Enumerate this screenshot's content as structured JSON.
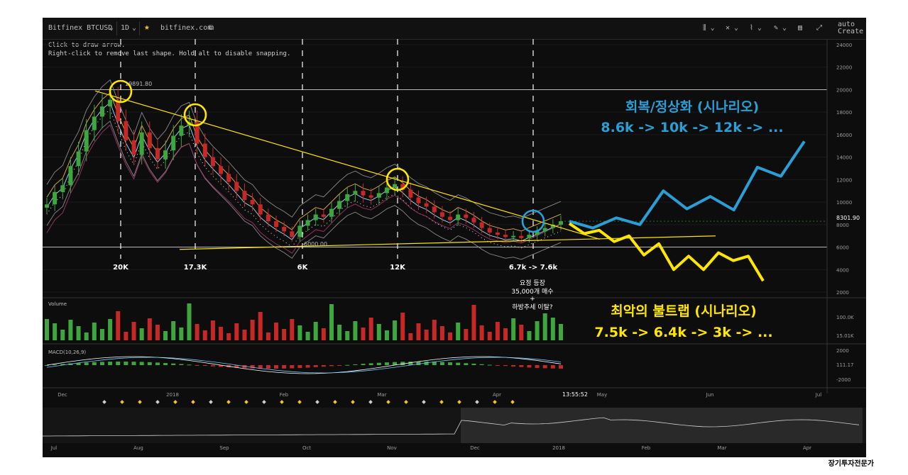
{
  "toolbar": {
    "symbol": "Bitfinex BTCUSD",
    "interval": "1D",
    "source": "bitfinex.com",
    "create_alert": "Create A",
    "auto": "auto",
    "star_icon": "star-icon"
  },
  "hints": {
    "line1": "Click to draw arrow.",
    "line2": "Right-click to remove last shape. Hold alt to disable snapping."
  },
  "colors": {
    "background": "#0d0d0d",
    "up": "#3fa63f",
    "down": "#c62828",
    "trend": "#ffe600",
    "recovery": "#2a9fd6",
    "crash": "#ffe600"
  },
  "annotations": {
    "recovery_title": "회복/정상화 (시나리오)",
    "recovery_path": "8.6k -> 10k -> 12k -> ...",
    "crash_title": "최악의 불트랩 (시나리오)",
    "crash_path": "7.5k -> 6.4k -> 3k -> ...",
    "event_1": "요정 등장",
    "event_2": "35,000개 매수",
    "event_3": "+",
    "event_4": "하방추세 이탈?",
    "level_20k": "20K",
    "level_173k": "17.3K",
    "level_6k": "6K",
    "level_12k": "12K",
    "level_67k": "6.7k -> 7.6k",
    "price_19891": "19891.80",
    "price_6000": "6000.00"
  },
  "watermark": "장기투자전문가",
  "chart_data": {
    "type": "candlestick",
    "y_ticks": [
      2000,
      4000,
      6000,
      8000,
      10000,
      12000,
      14000,
      16000,
      18000,
      20000,
      22000,
      24000
    ],
    "ylim": [
      1500,
      24500
    ],
    "current_price": "8301.90",
    "x_ticks_main": [
      "Dec",
      "2018",
      "Feb",
      "Mar",
      "Apr",
      "May",
      "Jun",
      "Jul"
    ],
    "time_label": "13:55:52",
    "close_series": [
      9800,
      10900,
      11500,
      13200,
      14500,
      16400,
      17600,
      18500,
      19100,
      17200,
      15500,
      14200,
      16200,
      14800,
      13800,
      14600,
      15900,
      16800,
      17100,
      15200,
      14000,
      13200,
      12500,
      11800,
      11000,
      10200,
      9800,
      8900,
      8300,
      7800,
      7400,
      6900,
      7900,
      8400,
      8900,
      8700,
      9400,
      10100,
      10700,
      11000,
      10600,
      10400,
      10800,
      11300,
      11600,
      11100,
      10400,
      9900,
      9600,
      9100,
      8700,
      8400,
      8900,
      8600,
      8200,
      7700,
      7300,
      7100,
      6900,
      7000,
      6800,
      7100,
      7400,
      7700,
      8000,
      8300
    ],
    "volume_ticks": [
      "100.0K",
      "15.01K"
    ],
    "macd_label": "MACD(10,26,9)",
    "macd_ticks": [
      "2000",
      "111.17",
      "-2000"
    ],
    "volume_label": "Volume",
    "navigator_ticks": [
      "Jul",
      "Aug",
      "Sep",
      "Oct",
      "Nov",
      "Dec",
      "2018",
      "Feb",
      "Mar",
      "Apr"
    ],
    "scenario_recovery": [
      8300,
      7700,
      8600,
      8000,
      11000,
      9400,
      10500,
      9300,
      13100,
      12300,
      15400
    ],
    "scenario_crash": [
      8100,
      7200,
      7500,
      6500,
      7000,
      5300,
      6300,
      4000,
      5200,
      4000,
      5500,
      4800,
      5200,
      3000
    ],
    "trend_upper": [
      [
        19891,
        0.07
      ],
      [
        8000,
        0.78
      ]
    ],
    "trend_lower": [
      [
        5800,
        0.17
      ],
      [
        6900,
        0.8
      ]
    ]
  }
}
